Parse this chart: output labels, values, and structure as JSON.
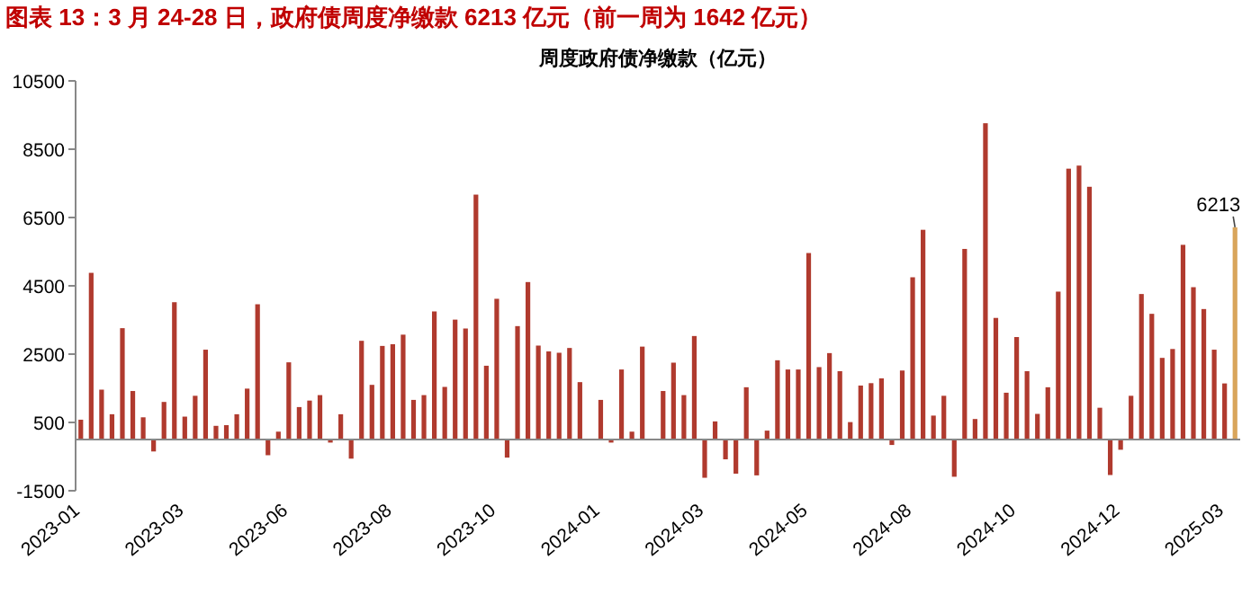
{
  "chart_data": {
    "type": "bar",
    "title": "图表 13：3 月 24-28 日，政府债周度净缴款 6213 亿元（前一周为 1642 亿元）",
    "subtitle": "周度政府债净缴款（亿元）",
    "categories": [
      "2023-01",
      null,
      null,
      null,
      null,
      null,
      null,
      null,
      null,
      null,
      "2023-03",
      null,
      null,
      null,
      null,
      null,
      null,
      null,
      null,
      null,
      "2023-06",
      null,
      null,
      null,
      null,
      null,
      null,
      null,
      null,
      null,
      "2023-08",
      null,
      null,
      null,
      null,
      null,
      null,
      null,
      null,
      null,
      "2023-10",
      null,
      null,
      null,
      null,
      null,
      null,
      null,
      null,
      null,
      "2024-01",
      null,
      null,
      null,
      null,
      null,
      null,
      null,
      null,
      null,
      "2024-03",
      null,
      null,
      null,
      null,
      null,
      null,
      null,
      null,
      null,
      "2024-05",
      null,
      null,
      null,
      null,
      null,
      null,
      null,
      null,
      null,
      "2024-08",
      null,
      null,
      null,
      null,
      null,
      null,
      null,
      null,
      null,
      "2024-10",
      null,
      null,
      null,
      null,
      null,
      null,
      null,
      null,
      null,
      "2024-12",
      null,
      null,
      null,
      null,
      null,
      null,
      null,
      null,
      null,
      "2025-03",
      null
    ],
    "values": [
      580,
      4880,
      1460,
      740,
      3260,
      1420,
      650,
      -350,
      1100,
      4020,
      670,
      1280,
      2630,
      400,
      420,
      740,
      1490,
      3960,
      -460,
      230,
      2260,
      950,
      1140,
      1300,
      -90,
      740,
      -560,
      2890,
      1600,
      2740,
      2790,
      3070,
      1160,
      1300,
      3750,
      1540,
      3510,
      3250,
      7170,
      2160,
      4120,
      -530,
      3320,
      4610,
      2750,
      2580,
      2540,
      2680,
      1680,
      0,
      1160,
      -90,
      2050,
      230,
      2720,
      0,
      1420,
      2250,
      1300,
      3030,
      -1120,
      530,
      -580,
      -1000,
      1530,
      -1050,
      260,
      2320,
      2050,
      2050,
      5460,
      2120,
      2530,
      2000,
      510,
      1580,
      1650,
      1790,
      -160,
      2020,
      4750,
      6140,
      700,
      1280,
      -1090,
      5580,
      600,
      9260,
      3560,
      1370,
      3000,
      2000,
      750,
      1530,
      4330,
      7930,
      8020,
      7400,
      930,
      -1040,
      -300,
      1280,
      4260,
      3680,
      2390,
      2650,
      5700,
      4460,
      3820,
      2630,
      1642,
      6213
    ],
    "colors": [
      "#b03a2e",
      "#b03a2e",
      "#b03a2e",
      "#b03a2e",
      "#b03a2e",
      "#b03a2e",
      "#b03a2e",
      "#b03a2e",
      "#b03a2e",
      "#b03a2e",
      "#b03a2e",
      "#b03a2e",
      "#b03a2e",
      "#b03a2e",
      "#b03a2e",
      "#b03a2e",
      "#b03a2e",
      "#b03a2e",
      "#b03a2e",
      "#b03a2e",
      "#b03a2e",
      "#b03a2e",
      "#b03a2e",
      "#b03a2e",
      "#b03a2e",
      "#b03a2e",
      "#b03a2e",
      "#b03a2e",
      "#b03a2e",
      "#b03a2e",
      "#b03a2e",
      "#b03a2e",
      "#b03a2e",
      "#b03a2e",
      "#b03a2e",
      "#b03a2e",
      "#b03a2e",
      "#b03a2e",
      "#b03a2e",
      "#b03a2e",
      "#b03a2e",
      "#b03a2e",
      "#b03a2e",
      "#b03a2e",
      "#b03a2e",
      "#b03a2e",
      "#b03a2e",
      "#b03a2e",
      "#b03a2e",
      "#b03a2e",
      "#b03a2e",
      "#b03a2e",
      "#b03a2e",
      "#b03a2e",
      "#b03a2e",
      "#b03a2e",
      "#b03a2e",
      "#b03a2e",
      "#b03a2e",
      "#b03a2e",
      "#b03a2e",
      "#b03a2e",
      "#b03a2e",
      "#b03a2e",
      "#b03a2e",
      "#b03a2e",
      "#b03a2e",
      "#b03a2e",
      "#b03a2e",
      "#b03a2e",
      "#b03a2e",
      "#b03a2e",
      "#b03a2e",
      "#b03a2e",
      "#b03a2e",
      "#b03a2e",
      "#b03a2e",
      "#b03a2e",
      "#b03a2e",
      "#b03a2e",
      "#b03a2e",
      "#b03a2e",
      "#b03a2e",
      "#b03a2e",
      "#b03a2e",
      "#b03a2e",
      "#b03a2e",
      "#b03a2e",
      "#b03a2e",
      "#b03a2e",
      "#b03a2e",
      "#b03a2e",
      "#b03a2e",
      "#b03a2e",
      "#b03a2e",
      "#b03a2e",
      "#b03a2e",
      "#b03a2e",
      "#b03a2e",
      "#b03a2e",
      "#b03a2e",
      "#b03a2e",
      "#b03a2e",
      "#b03a2e",
      "#b03a2e",
      "#b03a2e",
      "#b03a2e",
      "#b03a2e",
      "#b03a2e",
      "#b03a2e",
      "#b03a2e",
      "#d9a55b"
    ],
    "value_labels": [
      null,
      null,
      null,
      null,
      null,
      null,
      null,
      null,
      null,
      null,
      null,
      null,
      null,
      null,
      null,
      null,
      null,
      null,
      null,
      null,
      null,
      null,
      null,
      null,
      null,
      null,
      null,
      null,
      null,
      null,
      null,
      null,
      null,
      null,
      null,
      null,
      null,
      null,
      null,
      null,
      null,
      null,
      null,
      null,
      null,
      null,
      null,
      null,
      null,
      null,
      null,
      null,
      null,
      null,
      null,
      null,
      null,
      null,
      null,
      null,
      null,
      null,
      null,
      null,
      null,
      null,
      null,
      null,
      null,
      null,
      null,
      null,
      null,
      null,
      null,
      null,
      null,
      null,
      null,
      null,
      null,
      null,
      null,
      null,
      null,
      null,
      null,
      null,
      null,
      null,
      null,
      null,
      null,
      null,
      null,
      null,
      null,
      null,
      null,
      null,
      null,
      null,
      null,
      null,
      null,
      null,
      null,
      null,
      null,
      null,
      null,
      "6213"
    ],
    "ylim": [
      -1500,
      10500
    ],
    "yticks": [
      -1500,
      500,
      2500,
      4500,
      6500,
      8500,
      10500
    ]
  }
}
